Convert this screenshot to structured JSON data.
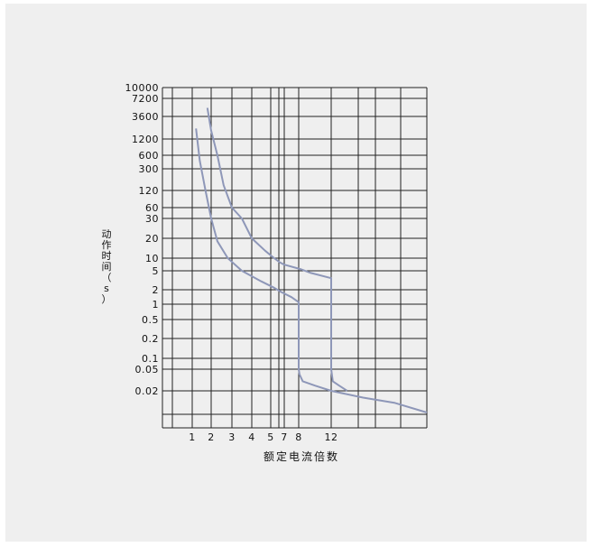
{
  "chart_data": {
    "type": "line",
    "title": "",
    "xlabel": "额定电流倍数",
    "ylabel": "动作时间（s）",
    "x_scale": "nonuniform",
    "y_scale": "nonuniform",
    "grid": true,
    "x_ticks": [
      1,
      2,
      3,
      4,
      5,
      7,
      8,
      12
    ],
    "x_tick_labels": [
      "1",
      "2",
      "3",
      "4",
      "5",
      "7",
      "8",
      "12"
    ],
    "y_ticks": [
      10000,
      7200,
      3600,
      1200,
      600,
      300,
      120,
      60,
      30,
      20,
      10,
      5,
      2,
      1,
      0.5,
      0.2,
      0.1,
      0.05,
      0.02
    ],
    "y_tick_labels": [
      "10000",
      "7200",
      "3600",
      "1200",
      "600",
      "300",
      "120",
      "60",
      "30",
      "20",
      "10",
      "5",
      "2",
      "1",
      "0.5",
      "0.2",
      "0.1",
      "0.05",
      "0.02"
    ],
    "series": [
      {
        "color": "#8e97b8",
        "x": [
          1.2,
          1.4,
          1.7,
          2.0,
          2.3,
          2.8,
          3.5,
          4.5,
          5.5,
          6.5,
          7.5,
          8.0,
          8.0,
          8.1,
          8.5,
          10,
          12,
          14,
          16,
          18
        ],
        "y": [
          2000,
          450,
          120,
          30,
          18,
          10,
          5,
          3,
          2.2,
          1.8,
          1.4,
          1.1,
          0.05,
          0.04,
          0.03,
          0.025,
          0.02,
          0.015,
          0.012,
          0.008
        ]
      },
      {
        "color": "#8e97b8",
        "x": [
          1.8,
          2.0,
          2.3,
          2.6,
          3.0,
          3.5,
          4.0,
          4.7,
          5.5,
          6.3,
          7.0,
          8.2,
          9.5,
          12,
          12,
          12.1,
          12.5,
          13
        ],
        "y": [
          5000,
          1800,
          600,
          150,
          60,
          30,
          20,
          13,
          10,
          8,
          7,
          5.5,
          4.5,
          3.5,
          0.05,
          0.03,
          0.025,
          0.02
        ]
      }
    ]
  }
}
